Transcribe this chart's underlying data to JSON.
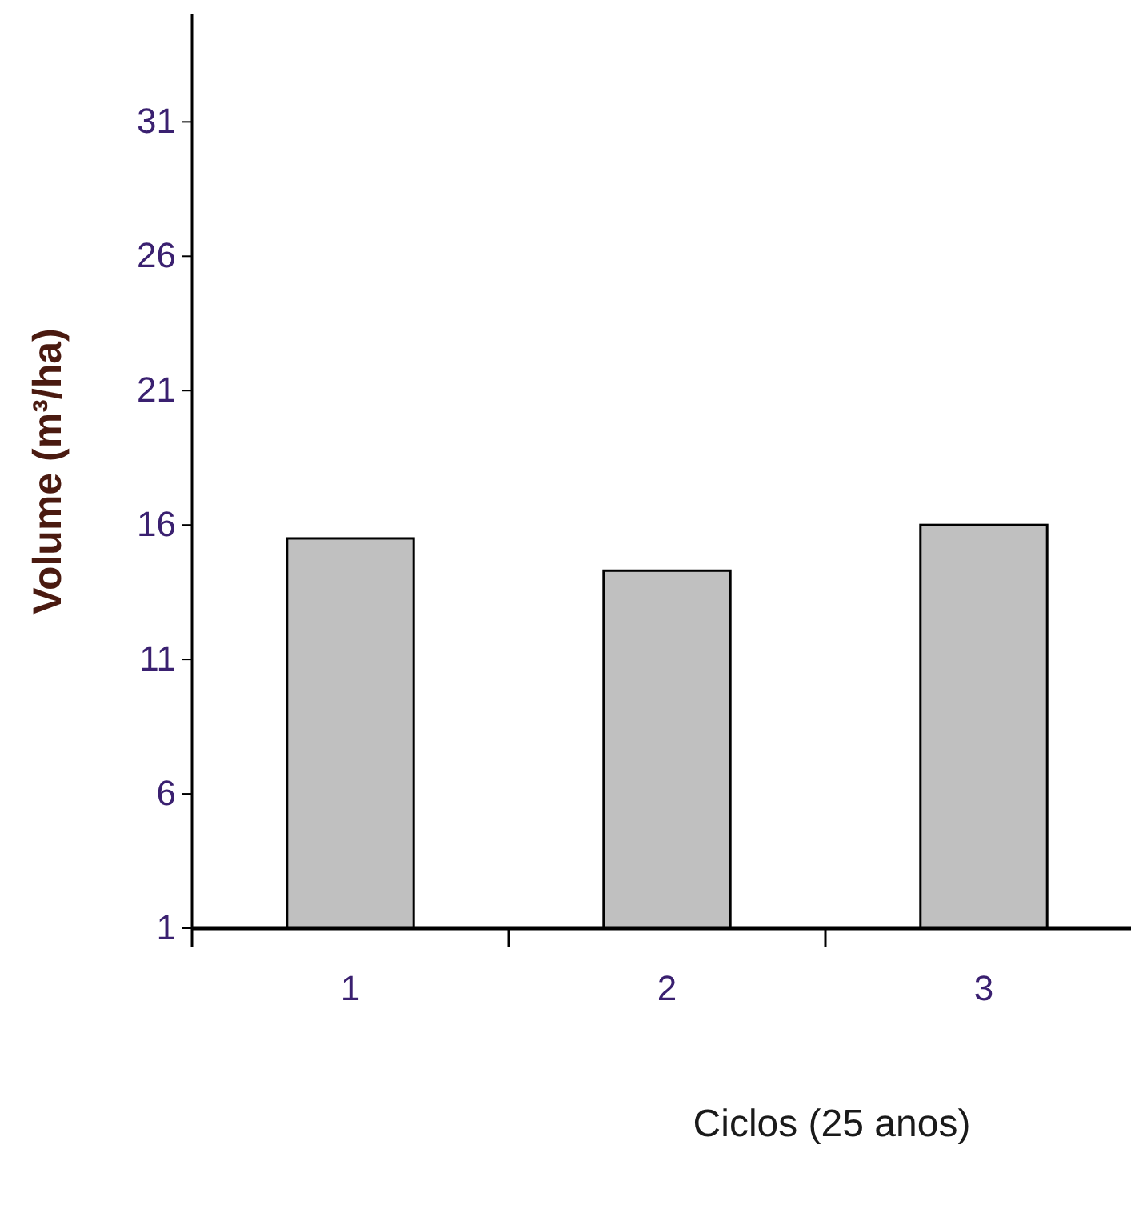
{
  "chart_data": {
    "type": "bar",
    "xlabel": "Ciclos (25 anos)",
    "ylabel": "Volume (m³/ha)",
    "categories": [
      "1",
      "2",
      "3"
    ],
    "values": [
      15.5,
      14.3,
      16.0
    ],
    "color": "#c0c0c0",
    "ylim": [
      1,
      35
    ],
    "yticks": [
      1,
      6,
      11,
      16,
      21,
      26,
      31
    ],
    "grid": false
  }
}
